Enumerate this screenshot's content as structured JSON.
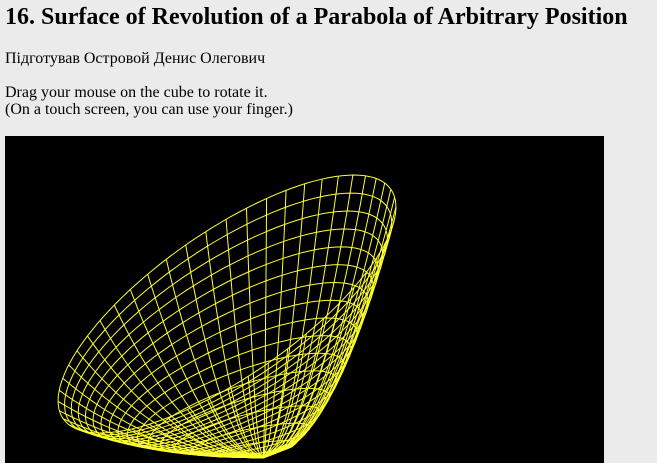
{
  "page": {
    "title": "16. Surface of Revolution of a Parabola of Arbitrary Position",
    "author": "Підготував Островой Денис Олегович",
    "instructions": [
      "Drag your mouse on the cube to rotate it.",
      "(On a touch screen, you can use your finger.)"
    ]
  },
  "viewer": {
    "background_color": "#000000",
    "wire_color": "#ffff33"
  }
}
